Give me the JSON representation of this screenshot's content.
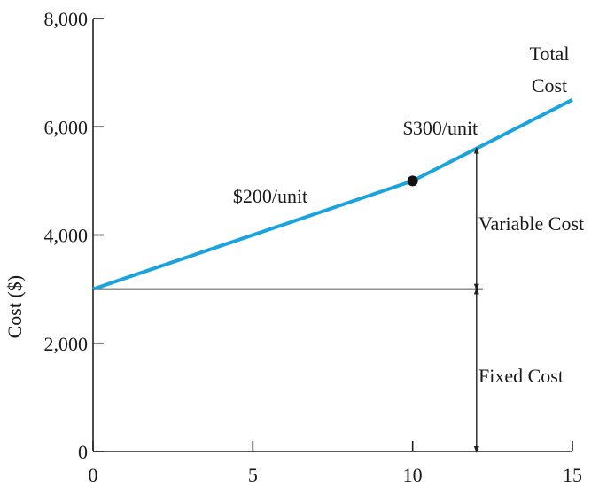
{
  "chart_data": {
    "type": "line",
    "title": "",
    "xlabel": "",
    "ylabel": "Cost ($)",
    "xlim": [
      0,
      15
    ],
    "ylim": [
      0,
      8000
    ],
    "x_ticks": [
      0,
      5,
      10,
      15
    ],
    "y_ticks": [
      0,
      2000,
      4000,
      6000,
      8000
    ],
    "x_tick_labels": [
      "0",
      "5",
      "10",
      "15"
    ],
    "y_tick_labels": [
      "0",
      "2,000",
      "4,000",
      "6,000",
      "8,000"
    ],
    "grid": false,
    "series": [
      {
        "name": "Total Cost",
        "color": "#1aa3dc",
        "x": [
          0,
          10,
          15
        ],
        "y": [
          3000,
          5000,
          6500
        ]
      },
      {
        "name": "",
        "color": "#222222",
        "x": [
          0,
          12.2
        ],
        "y": [
          3000,
          3000
        ]
      }
    ],
    "points": [
      {
        "x": 10,
        "y": 5000
      }
    ],
    "annotations": {
      "total_cost_line1": "Total",
      "total_cost_line2": "Cost",
      "rate_low": "$200/unit",
      "rate_high": "$300/unit",
      "variable_cost": "Variable Cost",
      "fixed_cost": "Fixed Cost"
    },
    "brackets": {
      "x": 12.0,
      "fixed": [
        0,
        3000
      ],
      "variable": [
        3000,
        5600
      ]
    }
  }
}
